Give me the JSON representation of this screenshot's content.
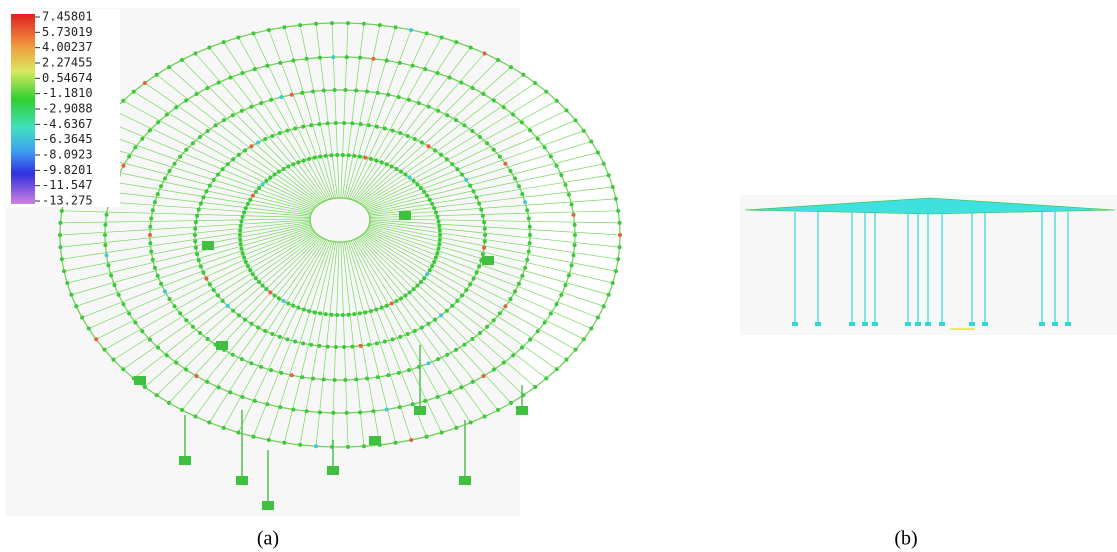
{
  "legend": {
    "labels": [
      "7.45801",
      "5.73019",
      "4.00237",
      "2.27455",
      "0.54674",
      "-1.1810",
      "-2.9088",
      "-4.6367",
      "-6.3645",
      "-8.0923",
      "-9.8201",
      "-11.547",
      "-13.275"
    ]
  },
  "captions": [
    "(a)",
    "(b)"
  ]
}
